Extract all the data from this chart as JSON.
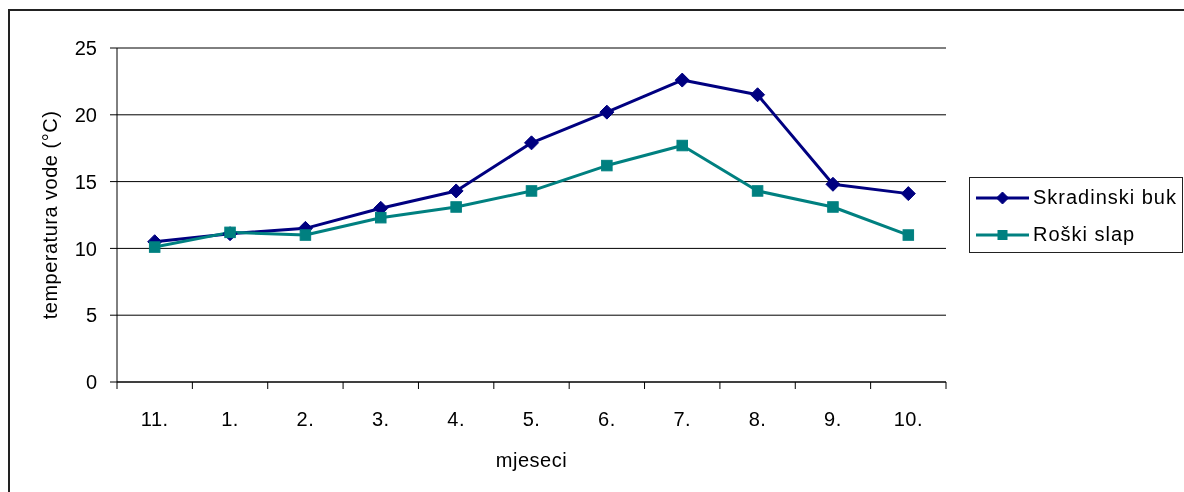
{
  "chart_data": {
    "type": "line",
    "xlabel": "mjeseci",
    "ylabel": "temperatura vode (°C)",
    "categories": [
      "11.",
      "1.",
      "2.",
      "3.",
      "4.",
      "5.",
      "6.",
      "7.",
      "8.",
      "9.",
      "10."
    ],
    "series": [
      {
        "name": "Skradinski buk",
        "color": "#000080",
        "marker": "diamond",
        "values": [
          10.5,
          11.1,
          11.5,
          13.0,
          14.3,
          17.9,
          20.2,
          22.6,
          21.5,
          14.8,
          14.1
        ]
      },
      {
        "name": "Roški slap",
        "color": "#008080",
        "marker": "square",
        "values": [
          10.1,
          11.2,
          11.0,
          12.3,
          13.1,
          14.3,
          16.2,
          17.7,
          14.3,
          13.1,
          11.0
        ]
      }
    ],
    "ylim": [
      0,
      25
    ],
    "yticks": [
      0,
      5,
      10,
      15,
      20,
      25
    ],
    "grid": "y",
    "legend": "right"
  }
}
